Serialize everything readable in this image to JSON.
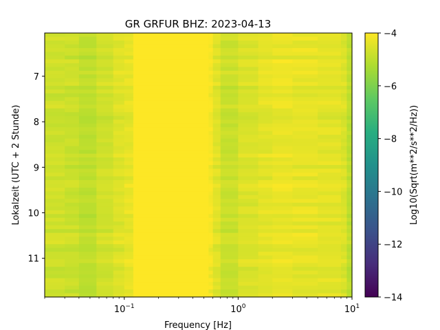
{
  "chart_data": {
    "type": "heatmap",
    "title": "GR GRFUR  BHZ: 2023-04-13",
    "xlabel": "Frequency [Hz]",
    "ylabel": "Lokalzeit (UTC + 2 Stunde)",
    "colorbar_label": "Log10(Sqrt(m**2/s**2/Hz))",
    "colormap": "viridis",
    "xscale": "log",
    "xlim": [
      0.02,
      10
    ],
    "ylim": [
      11.85,
      6.05
    ],
    "clim": [
      -14,
      -4
    ],
    "x_ticks": [
      {
        "value": 0.1,
        "label": "10",
        "exp": "−1"
      },
      {
        "value": 1,
        "label": "10",
        "exp": "0"
      },
      {
        "value": 10,
        "label": "10",
        "exp": "1"
      }
    ],
    "y_ticks": [
      {
        "value": 7,
        "label": "7"
      },
      {
        "value": 8,
        "label": "8"
      },
      {
        "value": 9,
        "label": "9"
      },
      {
        "value": 10,
        "label": "10"
      },
      {
        "value": 11,
        "label": "11"
      }
    ],
    "c_ticks": [
      {
        "value": -4,
        "label": "−4"
      },
      {
        "value": -6,
        "label": "−6"
      },
      {
        "value": -8,
        "label": "−8"
      },
      {
        "value": -10,
        "label": "−10"
      },
      {
        "value": -12,
        "label": "−12"
      },
      {
        "value": -14,
        "label": "−14"
      }
    ],
    "frequency_bins_hz": [
      0.02,
      0.03,
      0.04,
      0.057,
      0.08,
      0.1,
      0.12,
      0.55,
      0.6,
      0.7,
      1.0,
      1.5,
      2.0,
      3.0,
      5.0,
      8.0,
      9.0,
      10.0
    ],
    "band_level": [
      -4.75,
      -4.8,
      -5.0,
      -4.7,
      -4.5,
      -4.35,
      -4.0,
      -4.1,
      -4.45,
      -4.8,
      -4.55,
      -4.4,
      -4.3,
      -4.35,
      -4.4,
      -4.55,
      -5.0
    ],
    "time_bins": 70
  }
}
